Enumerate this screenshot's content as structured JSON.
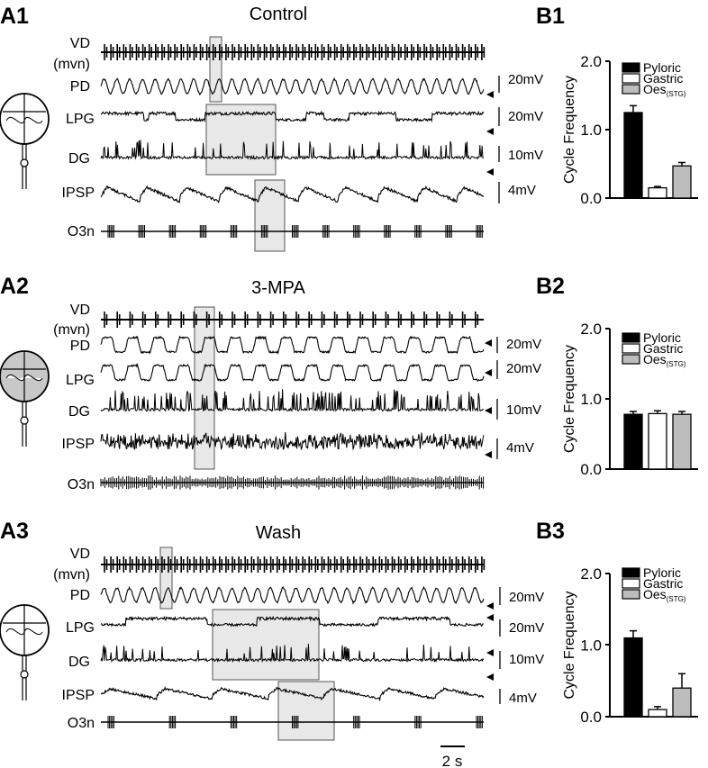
{
  "figure": {
    "scale_bar_label": "2 s",
    "panels": [
      {
        "id": "A1",
        "title": "Control",
        "trace_labels": [
          "VD",
          "(mvn)",
          "PD",
          "LPG",
          "DG",
          "IPSP",
          "O3n"
        ],
        "scale_labels": [
          "20mV",
          "20mV",
          "10mV",
          "4mV"
        ]
      },
      {
        "id": "A2",
        "title": "3-MPA",
        "trace_labels": [
          "VD",
          "(mvn)",
          "PD",
          "LPG",
          "DG",
          "IPSP",
          "O3n"
        ],
        "scale_labels": [
          "20mV",
          "20mV",
          "10mV",
          "4mV"
        ]
      },
      {
        "id": "A3",
        "title": "Wash",
        "trace_labels": [
          "VD",
          "(mvn)",
          "PD",
          "LPG",
          "DG",
          "IPSP",
          "O3n"
        ],
        "scale_labels": [
          "20mV",
          "20mV",
          "10mV",
          "4mV"
        ]
      }
    ]
  },
  "chart_data": [
    {
      "id": "B1",
      "type": "bar",
      "ylabel": "Cycle Frequency",
      "ylim": [
        0,
        2
      ],
      "yticks": [
        "0.0",
        "1.0",
        "2.0"
      ],
      "legend": [
        {
          "name": "Pyloric",
          "color": "#000000"
        },
        {
          "name": "Gastric",
          "color": "#ffffff"
        },
        {
          "name": "Oes",
          "sub": "(STG)",
          "color": "#bdbdbd"
        }
      ],
      "categories": [
        "Pyloric",
        "Gastric",
        "Oes(STG)"
      ],
      "values": [
        1.25,
        0.15,
        0.47
      ],
      "errors": [
        0.1,
        0.02,
        0.05
      ]
    },
    {
      "id": "B2",
      "type": "bar",
      "ylabel": "Cycle Frequency",
      "ylim": [
        0,
        2
      ],
      "yticks": [
        "0.0",
        "1.0",
        "2.0"
      ],
      "legend": [
        {
          "name": "Pyloric",
          "color": "#000000"
        },
        {
          "name": "Gastric",
          "color": "#ffffff"
        },
        {
          "name": "Oes",
          "sub": "(STG)",
          "color": "#bdbdbd"
        }
      ],
      "categories": [
        "Pyloric",
        "Gastric",
        "Oes(STG)"
      ],
      "values": [
        0.78,
        0.79,
        0.78
      ],
      "errors": [
        0.04,
        0.04,
        0.04
      ]
    },
    {
      "id": "B3",
      "type": "bar",
      "ylabel": "Cycle Frequency",
      "ylim": [
        0,
        2
      ],
      "yticks": [
        "0.0",
        "1.0",
        "2.0"
      ],
      "legend": [
        {
          "name": "Pyloric",
          "color": "#000000"
        },
        {
          "name": "Gastric",
          "color": "#ffffff"
        },
        {
          "name": "Oes",
          "sub": "(STG)",
          "color": "#bdbdbd"
        }
      ],
      "categories": [
        "Pyloric",
        "Gastric",
        "Oes(STG)"
      ],
      "values": [
        1.1,
        0.1,
        0.4
      ],
      "errors": [
        0.1,
        0.04,
        0.2
      ]
    }
  ]
}
